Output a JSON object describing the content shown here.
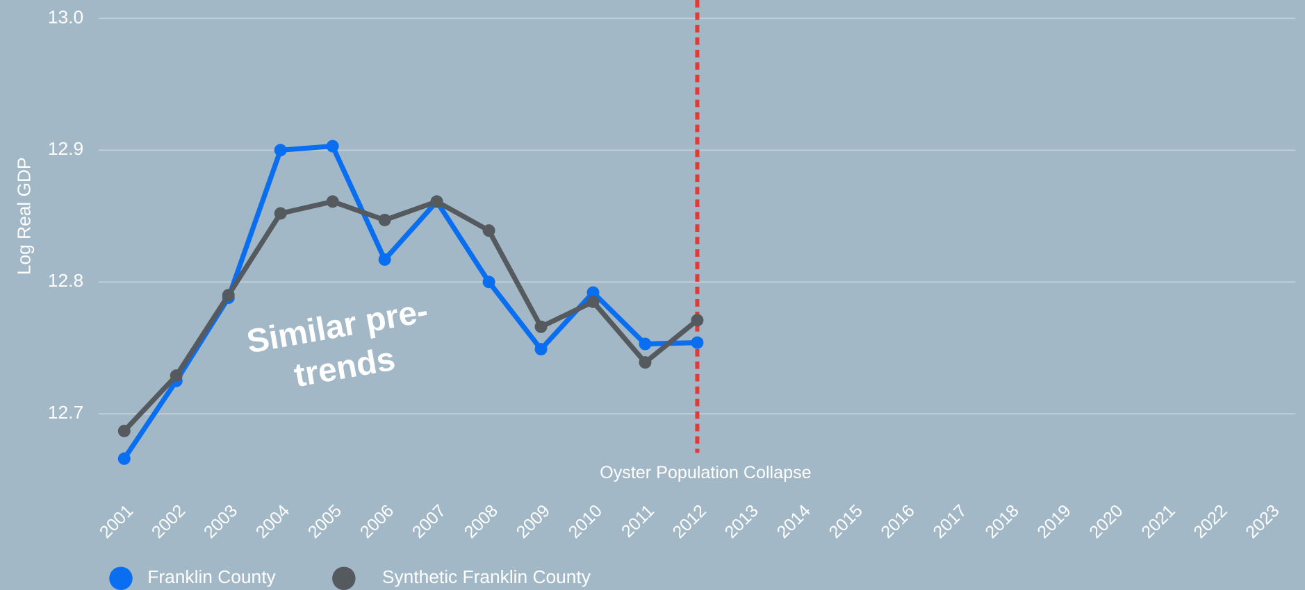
{
  "chart_data": {
    "type": "line",
    "y_label": "Log Real GDP",
    "categories": [
      "2001",
      "2002",
      "2003",
      "2004",
      "2005",
      "2006",
      "2007",
      "2008",
      "2009",
      "2010",
      "2011",
      "2012",
      "2013",
      "2014",
      "2015",
      "2016",
      "2017",
      "2018",
      "2019",
      "2020",
      "2021",
      "2022",
      "2023"
    ],
    "series": [
      {
        "name": "Franklin County",
        "color": "#0a6ef0",
        "values": [
          12.666,
          12.725,
          12.788,
          12.9,
          12.903,
          12.817,
          12.861,
          12.8,
          12.749,
          12.792,
          12.753,
          12.754,
          null,
          null,
          null,
          null,
          null,
          null,
          null,
          null,
          null,
          null,
          null
        ]
      },
      {
        "name": "Synthetic Franklin County",
        "color": "#555a5e",
        "values": [
          12.687,
          12.729,
          12.79,
          12.852,
          12.861,
          12.847,
          12.861,
          12.839,
          12.766,
          12.785,
          12.739,
          12.771,
          null,
          null,
          null,
          null,
          null,
          null,
          null,
          null,
          null,
          null,
          null
        ]
      }
    ],
    "ylim": [
      12.67,
      13.0
    ],
    "yticks": [
      12.7,
      12.8,
      12.9,
      {
        "value": 13,
        "label": "13.0"
      }
    ],
    "grid": true,
    "vline": {
      "x": "2012",
      "label": "Oyster Population Collapse",
      "color": "#e53935"
    },
    "annotation": [
      "Similar pre-",
      "trends"
    ]
  }
}
